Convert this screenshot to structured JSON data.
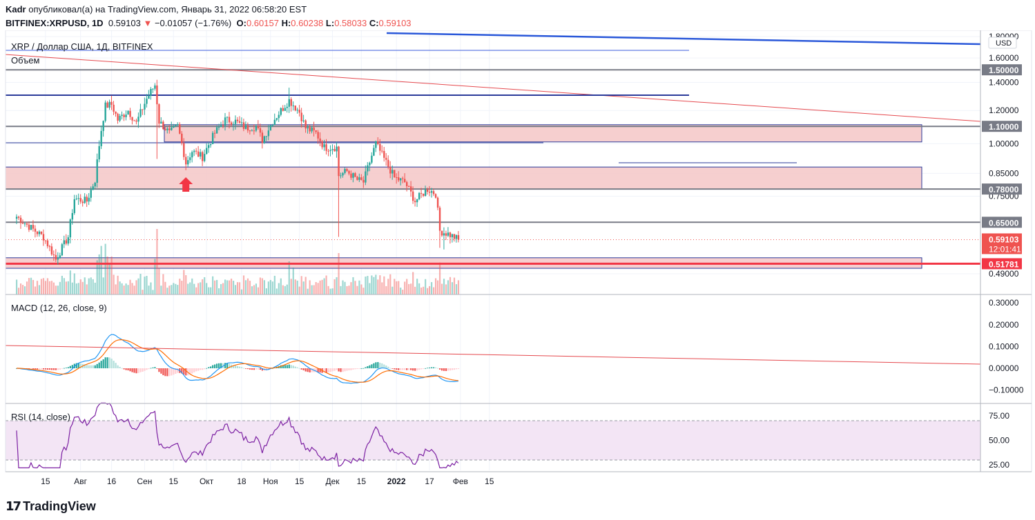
{
  "header": {
    "author": "Kadr",
    "published_text": "опубликовал(а) на TradingView.com, Январь 31, 2022 06:58:20 EST",
    "symbol": "BITFINEX:XRPUSD, 1D",
    "last": "0.59103",
    "change": "−0.01057 (−1.76%)",
    "o_label": "O:",
    "o": "0.60157",
    "h_label": "H:",
    "h": "0.60238",
    "l_label": "L:",
    "l": "0.58033",
    "c_label": "C:",
    "c": "0.59103"
  },
  "panes": {
    "main_title": "XRP / Доллар США, 1Д, BITFINEX",
    "volume_label": "Объем",
    "macd_label": "MACD (12, 26, close, 9)",
    "rsi_label": "RSI (14, close)"
  },
  "price_axis": {
    "currency": "USD",
    "ticks": [
      "1.80000",
      "1.60000",
      "1.40000",
      "1.20000",
      "1.00000",
      "0.85000",
      "0.75000",
      "0.49000"
    ],
    "level_labels": [
      "1.50000",
      "1.10000",
      "0.78000",
      "0.65000"
    ],
    "last_price_label": "0.59103",
    "countdown": "12:01:41",
    "support_label": "0.51781"
  },
  "macd_axis": {
    "ticks": [
      "0.30000",
      "0.20000",
      "0.10000",
      "0.00000",
      "−0.10000"
    ]
  },
  "rsi_axis": {
    "ticks": [
      "75.00",
      "50.00",
      "25.00"
    ]
  },
  "time_axis": {
    "labels": [
      "15",
      "Авг",
      "16",
      "Сен",
      "15",
      "Окт",
      "18",
      "Ноя",
      "15",
      "Дек",
      "15",
      "2022",
      "17",
      "Фев",
      "15"
    ]
  },
  "logo": {
    "text": "TradingView"
  },
  "colors": {
    "up": "#26a69a",
    "down": "#ef5350",
    "zone_fill": "#f4c7c7",
    "zone_border": "#2a3a9a",
    "level_line": "#787b86",
    "trend_red": "#e5484d",
    "trend_blue": "#2962ff",
    "macd_line": "#2196f3",
    "signal_line": "#ff6d00",
    "rsi_line": "#7b1fa2",
    "rsi_band": "#f3e5f5"
  },
  "chart_data": {
    "type": "candlestick",
    "symbol": "BITFINEX:XRPUSD",
    "interval": "1D",
    "log_scale": true,
    "horizontal_levels": [
      1.5,
      1.1,
      0.78,
      0.65,
      0.51781
    ],
    "zones": [
      [
        1.01,
        1.11
      ],
      [
        0.78,
        0.88
      ],
      [
        0.505,
        0.535
      ]
    ],
    "anchors": [
      {
        "date": "2021-07-01",
        "close": 0.67
      },
      {
        "date": "2021-07-08",
        "close": 0.63
      },
      {
        "date": "2021-07-14",
        "close": 0.6
      },
      {
        "date": "2021-07-20",
        "close": 0.53
      },
      {
        "date": "2021-07-26",
        "close": 0.6
      },
      {
        "date": "2021-07-29",
        "close": 0.74
      },
      {
        "date": "2021-08-04",
        "close": 0.73
      },
      {
        "date": "2021-08-08",
        "close": 0.82
      },
      {
        "date": "2021-08-11",
        "close": 1.08
      },
      {
        "date": "2021-08-13",
        "close": 1.23
      },
      {
        "date": "2021-08-16",
        "close": 1.24
      },
      {
        "date": "2021-08-19",
        "close": 1.14
      },
      {
        "date": "2021-08-24",
        "close": 1.2
      },
      {
        "date": "2021-08-28",
        "close": 1.12
      },
      {
        "date": "2021-09-02",
        "close": 1.28
      },
      {
        "date": "2021-09-06",
        "close": 1.38
      },
      {
        "date": "2021-09-08",
        "close": 1.13
      },
      {
        "date": "2021-09-13",
        "close": 1.06
      },
      {
        "date": "2021-09-17",
        "close": 1.1
      },
      {
        "date": "2021-09-21",
        "close": 0.9
      },
      {
        "date": "2021-09-24",
        "close": 0.96
      },
      {
        "date": "2021-09-29",
        "close": 0.93
      },
      {
        "date": "2021-10-05",
        "close": 1.06
      },
      {
        "date": "2021-10-10",
        "close": 1.14
      },
      {
        "date": "2021-10-15",
        "close": 1.13
      },
      {
        "date": "2021-10-20",
        "close": 1.09
      },
      {
        "date": "2021-10-25",
        "close": 1.1
      },
      {
        "date": "2021-10-28",
        "close": 1.02
      },
      {
        "date": "2021-11-02",
        "close": 1.13
      },
      {
        "date": "2021-11-10",
        "close": 1.27
      },
      {
        "date": "2021-11-15",
        "close": 1.19
      },
      {
        "date": "2021-11-18",
        "close": 1.09
      },
      {
        "date": "2021-11-23",
        "close": 1.06
      },
      {
        "date": "2021-11-27",
        "close": 0.98
      },
      {
        "date": "2021-12-03",
        "close": 0.98
      },
      {
        "date": "2021-12-04",
        "close": 0.84
      },
      {
        "date": "2021-12-08",
        "close": 0.86
      },
      {
        "date": "2021-12-13",
        "close": 0.82
      },
      {
        "date": "2021-12-16",
        "close": 0.81
      },
      {
        "date": "2021-12-22",
        "close": 1.0
      },
      {
        "date": "2021-12-26",
        "close": 0.92
      },
      {
        "date": "2021-12-31",
        "close": 0.83
      },
      {
        "date": "2022-01-05",
        "close": 0.81
      },
      {
        "date": "2022-01-10",
        "close": 0.73
      },
      {
        "date": "2022-01-16",
        "close": 0.78
      },
      {
        "date": "2022-01-20",
        "close": 0.76
      },
      {
        "date": "2022-01-22",
        "close": 0.62
      },
      {
        "date": "2022-01-26",
        "close": 0.61
      },
      {
        "date": "2022-01-31",
        "close": 0.59103
      }
    ],
    "annotations": [
      "up-arrow at 2021-09-21 below zone 0.78–0.88"
    ]
  }
}
